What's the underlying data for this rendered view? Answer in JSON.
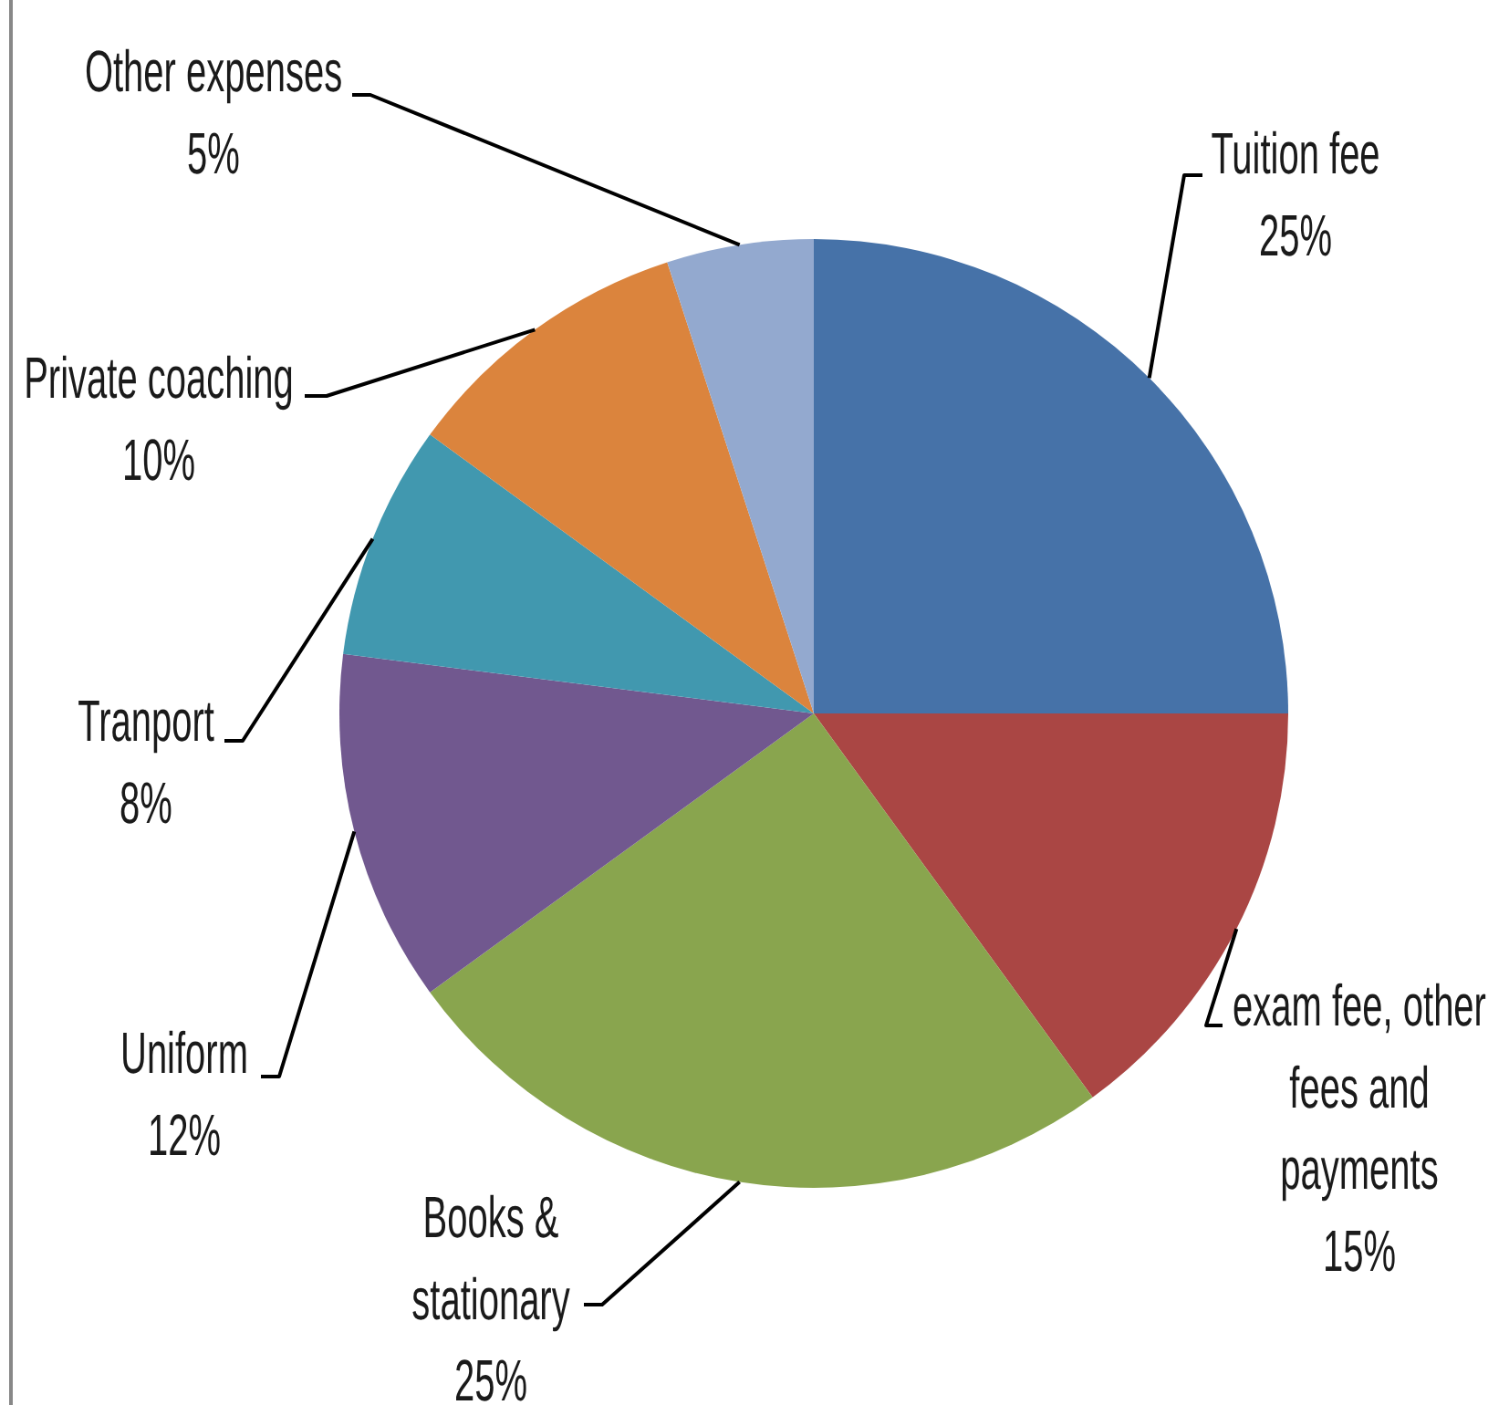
{
  "chart_data": {
    "type": "pie",
    "categories": [
      "Tuition fee",
      "exam fee, other fees and payments",
      "Books & stationary",
      "Uniform",
      "Tranport",
      "Private coaching",
      "Other expenses"
    ],
    "values": [
      25,
      15,
      25,
      12,
      8,
      10,
      5
    ],
    "colors": [
      "#4672a8",
      "#aa4644",
      "#89a54e",
      "#71588f",
      "#4198af",
      "#db843d",
      "#93a9cf"
    ],
    "value_labels": [
      "25%",
      "15%",
      "25%",
      "12%",
      "8%",
      "10%",
      "5%"
    ]
  }
}
